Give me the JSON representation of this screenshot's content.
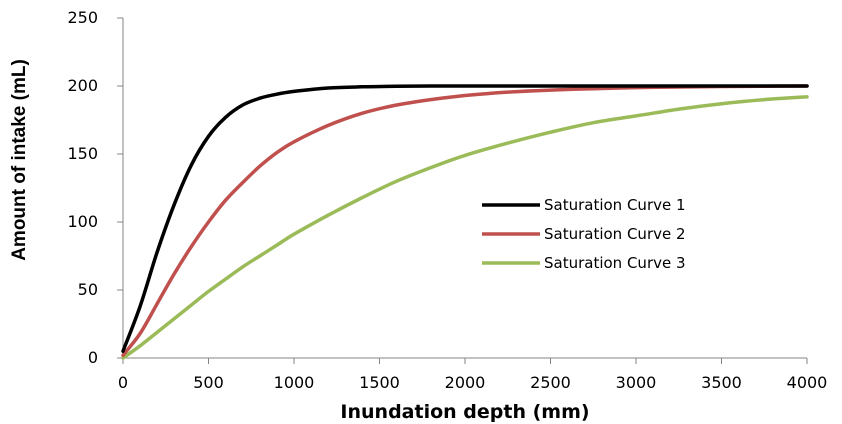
{
  "chart_data": {
    "type": "line",
    "xlabel": "Inundation depth (mm)",
    "ylabel": "Amount of intake (mL)",
    "xlim": [
      0,
      4000
    ],
    "ylim": [
      0,
      250
    ],
    "x_ticks": [
      0,
      500,
      1000,
      1500,
      2000,
      2500,
      3000,
      3500,
      4000
    ],
    "y_ticks": [
      0,
      50,
      100,
      150,
      200,
      250
    ],
    "grid": false,
    "legend_position": "right",
    "x": [
      0,
      100,
      200,
      300,
      400,
      500,
      600,
      700,
      800,
      900,
      1000,
      1200,
      1400,
      1600,
      1800,
      2000,
      2250,
      2500,
      2750,
      3000,
      3250,
      3500,
      3750,
      4000
    ],
    "series": [
      {
        "name": "Saturation Curve 1",
        "color": "#000000",
        "values": [
          5,
          38,
          78,
          113,
          142,
          163,
          177,
          186,
          191,
          194,
          196,
          198.5,
          199.4,
          199.8,
          200,
          200,
          200,
          200,
          200,
          200,
          200,
          200,
          200,
          200
        ]
      },
      {
        "name": "Saturation Curve 2",
        "color": "#c0504d",
        "values": [
          2,
          18,
          40,
          62,
          82,
          100,
          116,
          129,
          141,
          151,
          159,
          171,
          180,
          186,
          190,
          193,
          195.5,
          197,
          198,
          198.8,
          199.3,
          199.6,
          199.8,
          200
        ]
      },
      {
        "name": "Saturation Curve 3",
        "color": "#9bbb59",
        "values": [
          0,
          9,
          19,
          29,
          39,
          49,
          58,
          67,
          75,
          83,
          91,
          105,
          118,
          130,
          140,
          149,
          158,
          166,
          173,
          178,
          183,
          187,
          190,
          192
        ]
      }
    ]
  }
}
